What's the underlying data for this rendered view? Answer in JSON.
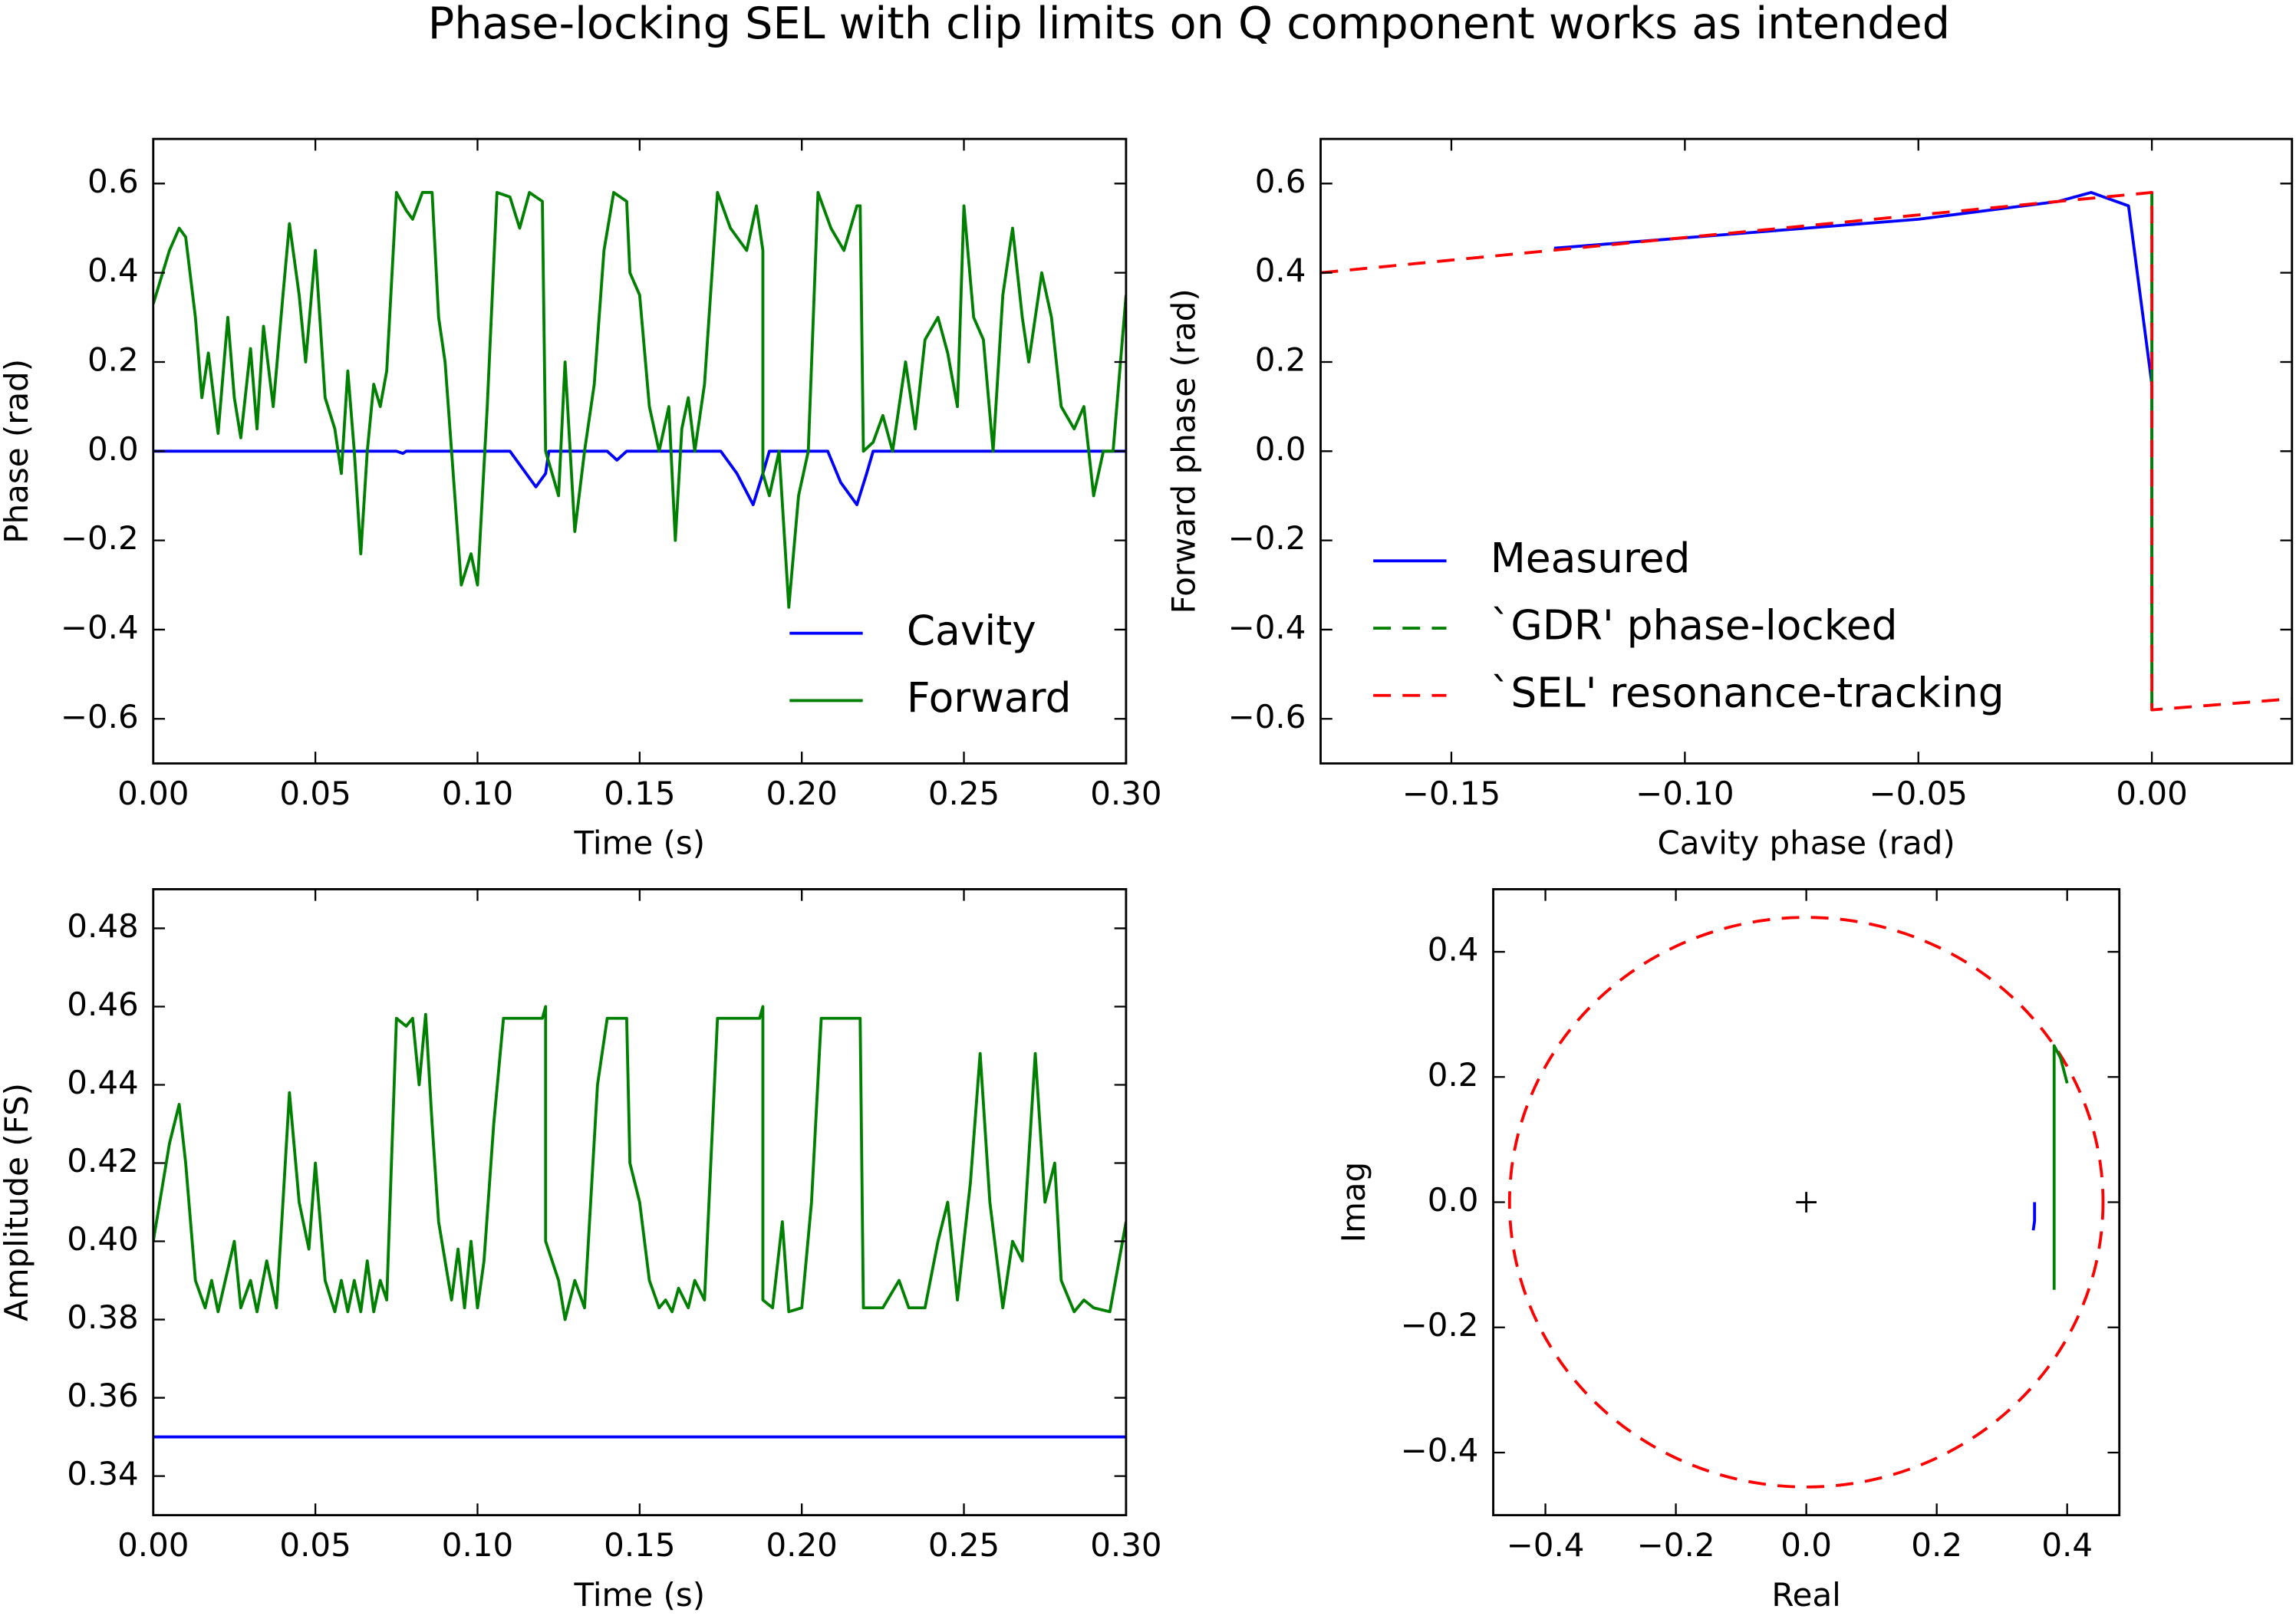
{
  "title": "Phase-locking SEL with clip limits on Q component works as intended",
  "chart_data": [
    {
      "type": "line",
      "xlabel": "Time (s)",
      "ylabel": "Phase (rad)",
      "legend": "lower right",
      "xlim": [
        0,
        0.3
      ],
      "ylim": [
        -0.7,
        0.7
      ],
      "xticks": [
        {
          "value": 0,
          "label": "0.00"
        },
        0.05,
        {
          "value": 0.1,
          "label": "0.10"
        },
        0.15,
        {
          "value": 0.2,
          "label": "0.20"
        },
        0.25,
        {
          "value": 0.3,
          "label": "0.30"
        }
      ],
      "yticks": [
        {
          "value": -0.6,
          "label": "−0.6"
        },
        {
          "value": -0.4,
          "label": "−0.4"
        },
        {
          "value": -0.2,
          "label": "−0.2"
        },
        {
          "value": 0,
          "label": "0.0"
        },
        0.2,
        0.4,
        0.6
      ],
      "series": [
        {
          "name": "Cavity",
          "color": "#0000ff",
          "linestyle": "solid",
          "x": [
            0,
            0.075,
            0.077,
            0.078,
            0.11,
            0.115,
            0.118,
            0.121,
            0.122,
            0.14,
            0.143,
            0.146,
            0.175,
            0.18,
            0.185,
            0.188,
            0.19,
            0.208,
            0.212,
            0.217,
            0.22,
            0.222,
            0.3
          ],
          "values": [
            0,
            0,
            -0.005,
            0,
            0,
            -0.05,
            -0.08,
            -0.05,
            0,
            0,
            -0.02,
            0,
            0,
            -0.05,
            -0.12,
            -0.05,
            0,
            0,
            -0.07,
            -0.12,
            -0.05,
            0,
            0
          ]
        },
        {
          "name": "Forward",
          "color": "#008000",
          "linestyle": "solid",
          "x": [
            0,
            0.005,
            0.008,
            0.01,
            0.013,
            0.015,
            0.017,
            0.02,
            0.023,
            0.025,
            0.027,
            0.03,
            0.032,
            0.034,
            0.037,
            0.04,
            0.042,
            0.045,
            0.047,
            0.05,
            0.053,
            0.056,
            0.058,
            0.06,
            0.062,
            0.064,
            0.066,
            0.068,
            0.07,
            0.072,
            0.075,
            0.078,
            0.08,
            0.083,
            0.086,
            0.088,
            0.09,
            0.093,
            0.095,
            0.098,
            0.1,
            0.103,
            0.106,
            0.11,
            0.113,
            0.116,
            0.12,
            0.121,
            0.125,
            0.127,
            0.13,
            0.133,
            0.136,
            0.139,
            0.142,
            0.146,
            0.147,
            0.15,
            0.153,
            0.156,
            0.159,
            0.161,
            0.163,
            0.165,
            0.167,
            0.17,
            0.174,
            0.178,
            0.183,
            0.186,
            0.188,
            0.188,
            0.19,
            0.193,
            0.196,
            0.199,
            0.202,
            0.205,
            0.209,
            0.213,
            0.217,
            0.218,
            0.219,
            0.222,
            0.225,
            0.228,
            0.232,
            0.235,
            0.238,
            0.242,
            0.245,
            0.248,
            0.25,
            0.253,
            0.256,
            0.259,
            0.262,
            0.265,
            0.268,
            0.27,
            0.274,
            0.277,
            0.28,
            0.284,
            0.287,
            0.29,
            0.293,
            0.296,
            0.3
          ],
          "values": [
            0.33,
            0.45,
            0.5,
            0.48,
            0.3,
            0.12,
            0.22,
            0.04,
            0.3,
            0.12,
            0.03,
            0.23,
            0.05,
            0.28,
            0.1,
            0.35,
            0.51,
            0.35,
            0.2,
            0.45,
            0.12,
            0.05,
            -0.05,
            0.18,
            0,
            -0.23,
            0,
            0.15,
            0.1,
            0.18,
            0.58,
            0.54,
            0.52,
            0.58,
            0.58,
            0.3,
            0.2,
            -0.1,
            -0.3,
            -0.23,
            -0.3,
            0.1,
            0.58,
            0.57,
            0.5,
            0.58,
            0.56,
            0,
            -0.1,
            0.2,
            -0.18,
            0,
            0.15,
            0.45,
            0.58,
            0.56,
            0.4,
            0.35,
            0.1,
            0,
            0.1,
            -0.2,
            0.05,
            0.12,
            0,
            0.15,
            0.58,
            0.5,
            0.45,
            0.55,
            0.45,
            -0.05,
            -0.1,
            0,
            -0.35,
            -0.1,
            0,
            0.58,
            0.5,
            0.45,
            0.55,
            0.55,
            0,
            0.02,
            0.08,
            0,
            0.2,
            0.05,
            0.25,
            0.3,
            0.22,
            0.1,
            0.55,
            0.3,
            0.25,
            0,
            0.35,
            0.5,
            0.3,
            0.2,
            0.4,
            0.3,
            0.1,
            0.05,
            0.1,
            -0.1,
            0,
            0,
            0.35
          ]
        }
      ]
    },
    {
      "type": "line",
      "xlabel": "Cavity phase (rad)",
      "ylabel": "Forward phase (rad)",
      "legend": "center left",
      "xlim": [
        -0.178,
        0.03
      ],
      "ylim": [
        -0.7,
        0.7
      ],
      "xticks": [
        {
          "value": -0.15,
          "label": "−0.15"
        },
        {
          "value": -0.1,
          "label": "−0.10"
        },
        {
          "value": -0.05,
          "label": "−0.05"
        },
        {
          "value": 0,
          "label": "0.00"
        }
      ],
      "yticks": [
        {
          "value": -0.6,
          "label": "−0.6"
        },
        {
          "value": -0.4,
          "label": "−0.4"
        },
        {
          "value": -0.2,
          "label": "−0.2"
        },
        {
          "value": 0,
          "label": "0.0"
        },
        0.2,
        0.4,
        0.6
      ],
      "series": [
        {
          "name": "Measured",
          "color": "#0000ff",
          "linestyle": "solid",
          "x": [
            -0.128,
            -0.05,
            -0.02,
            -0.013,
            -0.005,
            0,
            0
          ],
          "values": [
            0.455,
            0.52,
            0.56,
            0.58,
            0.55,
            0.15,
            -0.35
          ]
        },
        {
          "name": "`GDR' phase-locked",
          "color": "#008000",
          "linestyle": "dashed",
          "x": [
            0,
            0
          ],
          "values": [
            0.58,
            -0.58
          ]
        },
        {
          "name": "`SEL' resonance-tracking",
          "color": "#ff0000",
          "linestyle": "dashed",
          "x": [
            -0.178,
            -0.02,
            0,
            0,
            0.03
          ],
          "values": [
            0.4,
            0.56,
            0.58,
            -0.58,
            -0.555
          ]
        }
      ]
    },
    {
      "type": "line",
      "xlabel": "Time (s)",
      "ylabel": "Amplitude (FS)",
      "xlim": [
        0,
        0.3
      ],
      "ylim": [
        0.33,
        0.49
      ],
      "xticks": [
        {
          "value": 0,
          "label": "0.00"
        },
        0.05,
        {
          "value": 0.1,
          "label": "0.10"
        },
        0.15,
        {
          "value": 0.2,
          "label": "0.20"
        },
        0.25,
        {
          "value": 0.3,
          "label": "0.30"
        }
      ],
      "yticks": [
        0.34,
        0.36,
        0.38,
        {
          "value": 0.4,
          "label": "0.40"
        },
        0.42,
        0.44,
        0.46,
        0.48
      ],
      "series": [
        {
          "color": "#0000ff",
          "linestyle": "solid",
          "x": [
            0,
            0.3
          ],
          "values": [
            0.35,
            0.35
          ]
        },
        {
          "color": "#008000",
          "linestyle": "solid",
          "x": [
            0,
            0.005,
            0.008,
            0.01,
            0.013,
            0.016,
            0.018,
            0.02,
            0.025,
            0.027,
            0.03,
            0.032,
            0.035,
            0.038,
            0.04,
            0.042,
            0.045,
            0.048,
            0.05,
            0.053,
            0.056,
            0.058,
            0.06,
            0.062,
            0.064,
            0.066,
            0.068,
            0.07,
            0.072,
            0.075,
            0.078,
            0.08,
            0.082,
            0.084,
            0.086,
            0.088,
            0.09,
            0.092,
            0.094,
            0.096,
            0.098,
            0.1,
            0.102,
            0.105,
            0.108,
            0.12,
            0.121,
            0.121,
            0.125,
            0.127,
            0.13,
            0.133,
            0.137,
            0.14,
            0.146,
            0.147,
            0.15,
            0.153,
            0.156,
            0.158,
            0.16,
            0.162,
            0.165,
            0.167,
            0.17,
            0.174,
            0.187,
            0.188,
            0.188,
            0.191,
            0.194,
            0.196,
            0.2,
            0.203,
            0.206,
            0.218,
            0.219,
            0.225,
            0.23,
            0.233,
            0.238,
            0.242,
            0.245,
            0.248,
            0.252,
            0.255,
            0.258,
            0.262,
            0.265,
            0.268,
            0.272,
            0.275,
            0.278,
            0.28,
            0.284,
            0.287,
            0.29,
            0.295,
            0.3
          ],
          "values": [
            0.4,
            0.425,
            0.435,
            0.42,
            0.39,
            0.383,
            0.39,
            0.382,
            0.4,
            0.383,
            0.39,
            0.382,
            0.395,
            0.383,
            0.41,
            0.438,
            0.41,
            0.398,
            0.42,
            0.39,
            0.382,
            0.39,
            0.382,
            0.39,
            0.382,
            0.395,
            0.382,
            0.39,
            0.385,
            0.457,
            0.455,
            0.457,
            0.44,
            0.458,
            0.43,
            0.405,
            0.395,
            0.385,
            0.398,
            0.383,
            0.4,
            0.383,
            0.395,
            0.43,
            0.457,
            0.457,
            0.46,
            0.4,
            0.39,
            0.38,
            0.39,
            0.383,
            0.44,
            0.457,
            0.457,
            0.42,
            0.41,
            0.39,
            0.383,
            0.385,
            0.382,
            0.388,
            0.383,
            0.39,
            0.385,
            0.457,
            0.457,
            0.46,
            0.385,
            0.383,
            0.405,
            0.382,
            0.383,
            0.41,
            0.457,
            0.457,
            0.383,
            0.383,
            0.39,
            0.383,
            0.383,
            0.4,
            0.41,
            0.385,
            0.415,
            0.448,
            0.41,
            0.383,
            0.4,
            0.395,
            0.448,
            0.41,
            0.42,
            0.39,
            0.382,
            0.385,
            0.383,
            0.382,
            0.405
          ]
        }
      ]
    },
    {
      "type": "line",
      "xlabel": "Real",
      "ylabel": "Imag",
      "xlim": [
        -0.48,
        0.48
      ],
      "ylim": [
        -0.5,
        0.5
      ],
      "xticks": [
        {
          "value": -0.4,
          "label": "−0.4"
        },
        {
          "value": -0.2,
          "label": "−0.2"
        },
        {
          "value": 0,
          "label": "0.0"
        },
        0.2,
        0.4
      ],
      "yticks": [
        {
          "value": -0.4,
          "label": "−0.4"
        },
        {
          "value": -0.2,
          "label": "−0.2"
        },
        {
          "value": 0,
          "label": "0.0"
        },
        0.2,
        0.4
      ],
      "circle": {
        "radius": 0.455,
        "color": "#ff0000",
        "linestyle": "dashed"
      },
      "series": [
        {
          "color": "#000000",
          "marker": "+",
          "x": [
            0
          ],
          "values": [
            0
          ]
        },
        {
          "color": "#0000ff",
          "linestyle": "solid",
          "x": [
            0.35,
            0.35,
            0.348
          ],
          "values": [
            0,
            -0.03,
            -0.045
          ]
        },
        {
          "color": "#008000",
          "linestyle": "solid",
          "x": [
            0.38,
            0.38,
            0.38,
            0.39,
            0.4
          ],
          "values": [
            -0.14,
            0,
            0.25,
            0.23,
            0.19
          ]
        }
      ]
    }
  ]
}
